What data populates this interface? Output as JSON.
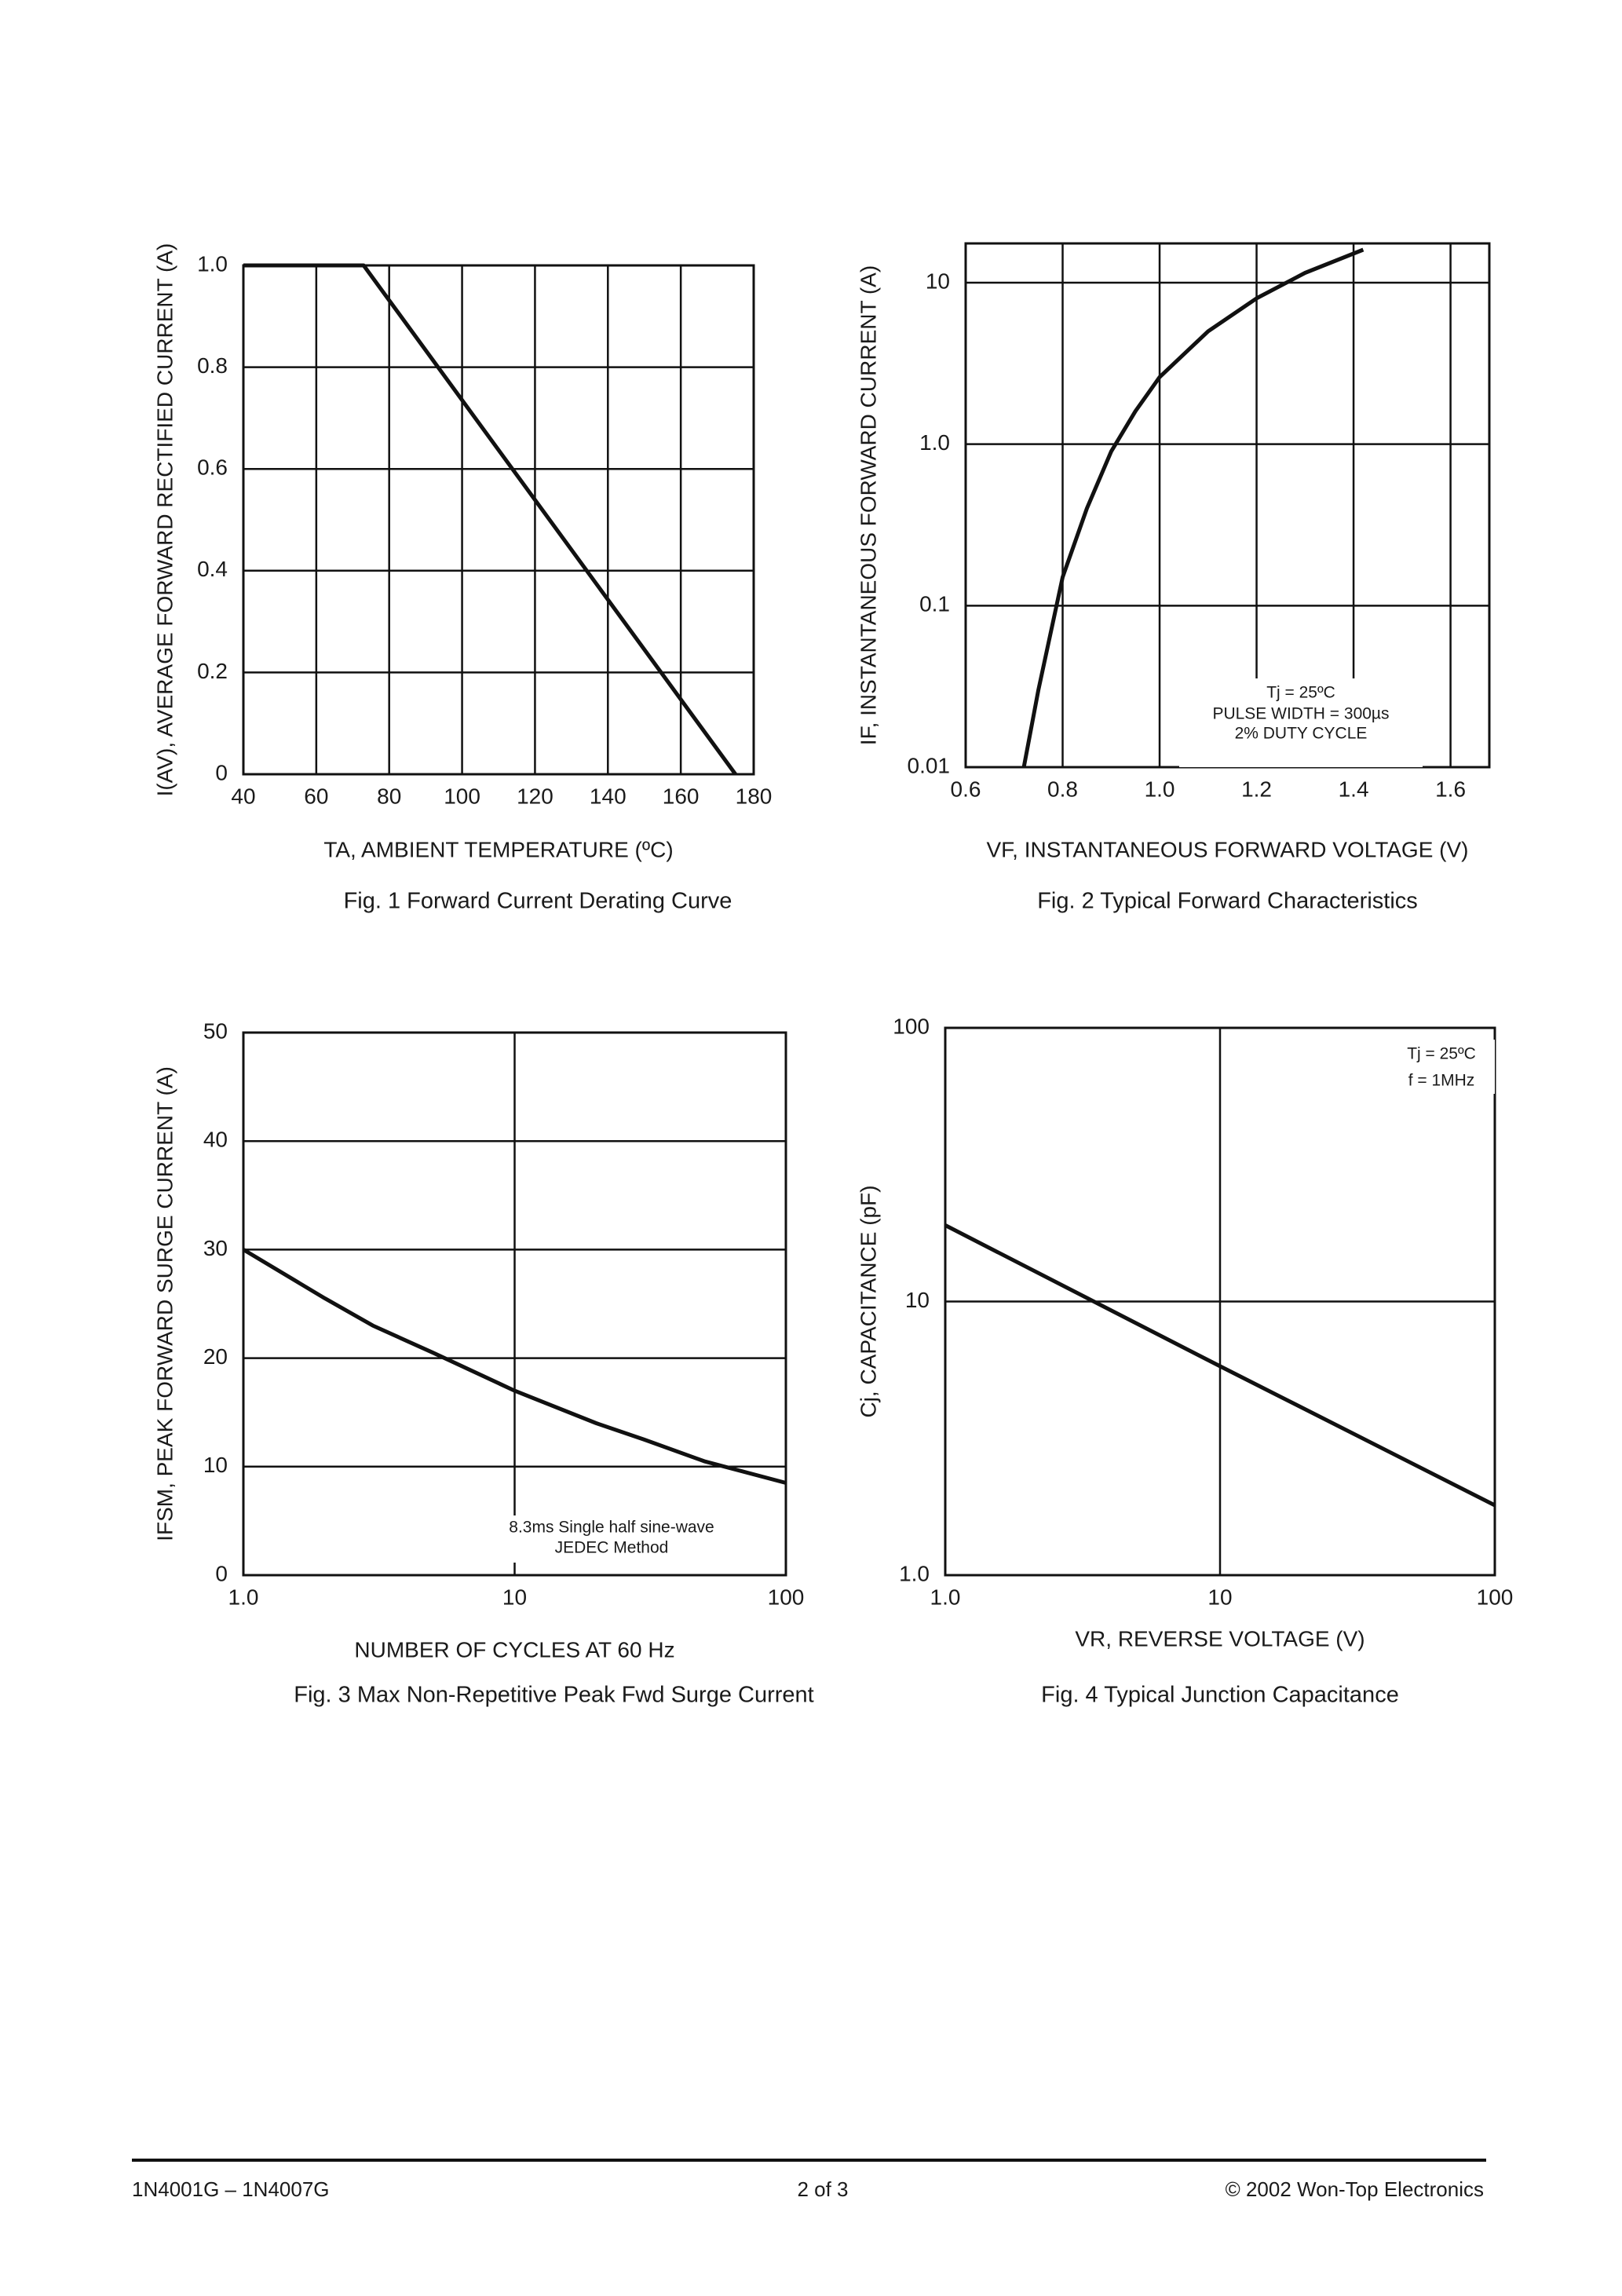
{
  "chart_data": [
    {
      "type": "line",
      "caption": "Fig. 1 Forward Current Derating Curve",
      "x_label": "TA, AMBIENT TEMPERATURE (ºC)",
      "y_label": "I(AV), AVERAGE FORWARD RECTIFIED CURRENT (A)",
      "x": [
        40,
        73,
        175
      ],
      "values": [
        1,
        1,
        0
      ],
      "color": "#111111",
      "xlim": [
        40,
        180
      ],
      "ylim": [
        0,
        1
      ],
      "xticks": [
        40,
        60,
        80,
        100,
        120,
        140,
        160,
        180
      ],
      "yticks": [
        0,
        0.2,
        0.4,
        0.6,
        0.8,
        {
          "value": 1,
          "label": "1.0"
        }
      ],
      "grid": true,
      "annotations": []
    },
    {
      "type": "line",
      "caption": "Fig. 2 Typical Forward Characteristics",
      "x_label": "VF, INSTANTANEOUS FORWARD VOLTAGE (V)",
      "y_label": "IF, INSTANTANEOUS FORWARD CURRENT (A)",
      "x": [
        0.72,
        0.75,
        0.8,
        0.85,
        0.9,
        0.95,
        1.0,
        1.1,
        1.2,
        1.3,
        1.42
      ],
      "values": [
        0.01,
        0.03,
        0.15,
        0.4,
        0.9,
        1.6,
        2.6,
        5,
        8,
        11.5,
        16
      ],
      "color": "#111111",
      "xlim": [
        0.6,
        1.68
      ],
      "ylim": [
        0.01,
        17.5
      ],
      "yscale": "log",
      "xticks": [
        0.6,
        0.8,
        {
          "value": 1,
          "label": "1.0"
        },
        1.2,
        1.4,
        1.6
      ],
      "yticks": [
        0.01,
        0.1,
        {
          "value": 1,
          "label": "1.0"
        },
        10
      ],
      "grid": true,
      "annotations": [
        "Tj = 25ºC",
        "PULSE WIDTH = 300µs",
        "2% DUTY CYCLE"
      ]
    },
    {
      "type": "line",
      "caption": "Fig. 3  Max Non-Repetitive Peak Fwd Surge Current",
      "x_label": "NUMBER OF CYCLES AT 60 Hz",
      "y_label": "IFSM, PEAK FORWARD SURGE CURRENT (A)",
      "x": [
        1,
        2,
        3,
        5,
        10,
        20,
        30,
        50,
        100
      ],
      "values": [
        30,
        25.5,
        23,
        20.5,
        17,
        14,
        12.5,
        10.5,
        8.5
      ],
      "color": "#111111",
      "xlim": [
        1,
        100
      ],
      "ylim": [
        0,
        50
      ],
      "xscale": "log",
      "xticks": [
        {
          "value": 1,
          "label": "1.0"
        },
        10,
        100
      ],
      "yticks": [
        0,
        10,
        20,
        30,
        40,
        50
      ],
      "grid": true,
      "annotations": [
        "8.3ms Single half sine-wave",
        "JEDEC Method"
      ]
    },
    {
      "type": "line",
      "caption": "Fig. 4 Typical Junction Capacitance",
      "x_label": "VR, REVERSE VOLTAGE (V)",
      "y_label": "Cj, CAPACITANCE (pF)",
      "x": [
        1,
        10,
        100
      ],
      "values": [
        19,
        5.8,
        1.8
      ],
      "color": "#111111",
      "xlim": [
        1,
        100
      ],
      "ylim": [
        1,
        100
      ],
      "xscale": "log",
      "yscale": "log",
      "xticks": [
        {
          "value": 1,
          "label": "1.0"
        },
        10,
        100
      ],
      "yticks": [
        {
          "value": 1,
          "label": "1.0"
        },
        10,
        100
      ],
      "grid": true,
      "annotations": [
        "Tj = 25ºC",
        "f = 1MHz"
      ]
    }
  ],
  "footer": {
    "left": "1N4001G – 1N4007G",
    "center": "2 of 3",
    "right": "© 2002 Won-Top Electronics"
  }
}
